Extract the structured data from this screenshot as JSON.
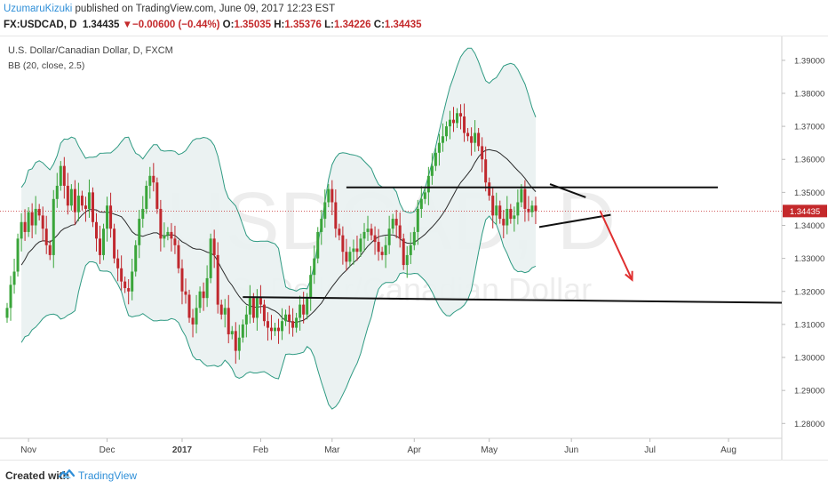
{
  "header": {
    "author": "UzumaruKizuki",
    "published": " published on TradingView.com, June 09, 2017 12:23 EST",
    "symbol": "FX:USDCAD, D",
    "last": "1.34435",
    "change_arrow": "▼",
    "change": "−0.00600 (−0.44%)",
    "o_label": "O:",
    "o": "1.35035",
    "h_label": "H:",
    "h": "1.35376",
    "l_label": "L:",
    "l": "1.34226",
    "c_label": "C:",
    "c": "1.34435"
  },
  "footer": {
    "created": "Created with",
    "brand": "TradingView"
  },
  "colors": {
    "up": "#3aa53a",
    "down": "#c0282e",
    "band_fill": "#e9f1f1",
    "band_line": "#2e9a82",
    "basis": "#2b2b2b",
    "price_label": "#c4292b",
    "arrow": "#e03030"
  },
  "chart_data": {
    "type": "candlestick",
    "title": "U.S. Dollar/Canadian Dollar, D, FXCM",
    "indicator": "BB (20, close, 2.5)",
    "watermark_symbol": "USDCAD, D",
    "watermark_name": "U.S. Dollar/Canadian Dollar",
    "y_ticks": [
      "1.28000",
      "1.29000",
      "1.30000",
      "1.31000",
      "1.32000",
      "1.33000",
      "1.34000",
      "1.35000",
      "1.36000",
      "1.37000",
      "1.38000",
      "1.39000"
    ],
    "y_range": [
      1.2755,
      1.3975
    ],
    "current_price": "1.34435",
    "x_ticks": [
      {
        "label": "Nov",
        "i": 6
      },
      {
        "label": "Dec",
        "i": 28
      },
      {
        "label": "2017",
        "i": 49
      },
      {
        "label": "Feb",
        "i": 71
      },
      {
        "label": "Mar",
        "i": 91
      },
      {
        "label": "Apr",
        "i": 114
      },
      {
        "label": "May",
        "i": 135
      },
      {
        "label": "Jun",
        "i": 158
      },
      {
        "label": "Jul",
        "i": 180
      },
      {
        "label": "Aug",
        "i": 202
      }
    ],
    "close": [
      1.315,
      1.322,
      1.326,
      1.336,
      1.341,
      1.338,
      1.344,
      1.34,
      1.345,
      1.343,
      1.339,
      1.334,
      1.331,
      1.348,
      1.352,
      1.358,
      1.352,
      1.346,
      1.351,
      1.344,
      1.349,
      1.346,
      1.345,
      1.35,
      1.341,
      1.336,
      1.331,
      1.339,
      1.346,
      1.339,
      1.33,
      1.327,
      1.323,
      1.321,
      1.32,
      1.326,
      1.334,
      1.342,
      1.345,
      1.352,
      1.355,
      1.353,
      1.345,
      1.336,
      1.337,
      1.338,
      1.336,
      1.334,
      1.327,
      1.32,
      1.319,
      1.312,
      1.31,
      1.315,
      1.32,
      1.318,
      1.324,
      1.336,
      1.331,
      1.316,
      1.313,
      1.315,
      1.307,
      1.308,
      1.302,
      1.306,
      1.31,
      1.313,
      1.318,
      1.312,
      1.318,
      1.316,
      1.311,
      1.309,
      1.308,
      1.309,
      1.308,
      1.311,
      1.313,
      1.311,
      1.309,
      1.312,
      1.316,
      1.313,
      1.318,
      1.325,
      1.33,
      1.338,
      1.342,
      1.347,
      1.351,
      1.347,
      1.339,
      1.337,
      1.332,
      1.329,
      1.332,
      1.333,
      1.332,
      1.336,
      1.338,
      1.339,
      1.337,
      1.335,
      1.332,
      1.331,
      1.334,
      1.339,
      1.342,
      1.34,
      1.336,
      1.328,
      1.331,
      1.334,
      1.338,
      1.345,
      1.348,
      1.35,
      1.355,
      1.358,
      1.362,
      1.365,
      1.367,
      1.37,
      1.372,
      1.371,
      1.374,
      1.373,
      1.368,
      1.367,
      1.365,
      1.368,
      1.364,
      1.36,
      1.353,
      1.349,
      1.343,
      1.346,
      1.342,
      1.34,
      1.345,
      1.342,
      1.343,
      1.347,
      1.351,
      1.345,
      1.344,
      1.346,
      1.3443
    ],
    "bb": {
      "period": 20,
      "mult": 2.5
    },
    "lines": [
      {
        "name": "resistance",
        "from": [
          95,
          1.3515
        ],
        "to": [
          199,
          1.3515
        ]
      },
      {
        "name": "support",
        "from": [
          66,
          1.3183
        ],
        "to": [
          223,
          1.3165
        ]
      },
      {
        "name": "triangle-top",
        "from": [
          152,
          1.3525
        ],
        "to": [
          162,
          1.3485
        ]
      },
      {
        "name": "triangle-bottom",
        "from": [
          149,
          1.3395
        ],
        "to": [
          169,
          1.3432
        ]
      }
    ],
    "arrow": {
      "from": [
        166,
        1.3445
      ],
      "to": [
        175,
        1.3235
      ]
    }
  }
}
